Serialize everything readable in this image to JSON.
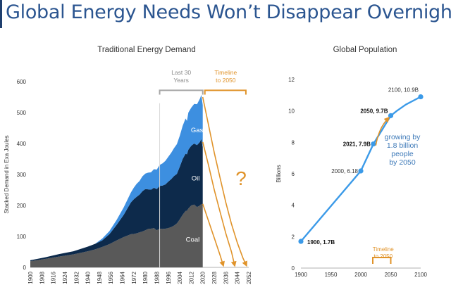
{
  "page": {
    "title": "Global Energy Needs Won’t Disappear Overnight"
  },
  "colors": {
    "title": "#2b5590",
    "coal": "#595959",
    "oil": "#0d2a4b",
    "gas": "#3d8fe0",
    "forecast": "#e0932a",
    "population": "#3b9ae8",
    "text": "#333333",
    "muted": "#8a8a8a",
    "growth_text": "#3d79b8"
  },
  "chart_data": [
    {
      "type": "area",
      "stacked": true,
      "title": "Traditional Energy Demand",
      "xlabel": "",
      "ylabel": "Stacked Demand in Exa Joules",
      "xlim": [
        1900,
        2052
      ],
      "ylim": [
        0,
        600
      ],
      "x_ticks": [
        1900,
        1908,
        1916,
        1924,
        1932,
        1940,
        1948,
        1956,
        1964,
        1972,
        1980,
        1988,
        1996,
        2004,
        2012,
        2020,
        2028,
        2036,
        2044,
        2052
      ],
      "y_ticks": [
        0,
        100,
        200,
        300,
        400,
        500,
        600
      ],
      "x": [
        1900,
        1910,
        1920,
        1930,
        1940,
        1945,
        1950,
        1955,
        1960,
        1965,
        1970,
        1972,
        1974,
        1976,
        1978,
        1980,
        1982,
        1984,
        1986,
        1988,
        1990,
        1992,
        1994,
        1996,
        1998,
        2000,
        2002,
        2004,
        2006,
        2008,
        2009,
        2010,
        2012,
        2014,
        2016,
        2018,
        2019,
        2020
      ],
      "series": [
        {
          "name": "Coal",
          "values": [
            20,
            27,
            35,
            42,
            52,
            58,
            66,
            75,
            87,
            98,
            107,
            108,
            110,
            113,
            116,
            120,
            124,
            125,
            127,
            120,
            125,
            124,
            125,
            127,
            130,
            135,
            142,
            155,
            170,
            182,
            183,
            190,
            200,
            203,
            195,
            200,
            205,
            198
          ]
        },
        {
          "name": "Oil",
          "values": [
            3,
            5,
            8,
            10,
            15,
            18,
            21,
            32,
            50,
            72,
            103,
            112,
            118,
            122,
            130,
            133,
            128,
            126,
            130,
            133,
            138,
            140,
            143,
            150,
            155,
            160,
            160,
            170,
            180,
            185,
            182,
            190,
            193,
            197,
            200,
            205,
            210,
            190
          ]
        },
        {
          "name": "Gas",
          "values": [
            0,
            0,
            0,
            0,
            0,
            0,
            6,
            10,
            16,
            24,
            32,
            37,
            42,
            44,
            48,
            50,
            54,
            56,
            60,
            63,
            68,
            72,
            76,
            80,
            85,
            90,
            96,
            100,
            107,
            114,
            108,
            120,
            123,
            128,
            132,
            140,
            142,
            136
          ]
        }
      ],
      "area_labels": [
        "Gas",
        "Oil",
        "Coal"
      ],
      "annotations": {
        "last30": "Last 30\nYears",
        "timeline": "Timeline\nto 2050",
        "question": "?"
      },
      "forecast": {
        "start": {
          "year": 2020,
          "value": 550
        },
        "lines": [
          {
            "series": "Gas",
            "x": [
              2020,
              2024,
              2028,
              2032,
              2036,
              2040,
              2044,
              2048,
              2050
            ],
            "values": [
              550,
              460,
              370,
              290,
              210,
              140,
              80,
              30,
              10
            ]
          },
          {
            "series": "Oil",
            "x": [
              2020,
              2024,
              2028,
              2032,
              2036,
              2040,
              2042
            ],
            "values": [
              405,
              330,
              250,
              180,
              110,
              50,
              10
            ]
          },
          {
            "series": "Coal",
            "x": [
              2020,
              2024,
              2028,
              2032,
              2034
            ],
            "values": [
              205,
              150,
              95,
              40,
              10
            ]
          }
        ]
      }
    },
    {
      "type": "line",
      "title": "Global Population",
      "xlabel": "",
      "ylabel": "Billions",
      "xlim": [
        1900,
        2100
      ],
      "ylim": [
        0,
        12
      ],
      "x_ticks": [
        1900,
        1950,
        2000,
        2050,
        2100
      ],
      "y_ticks": [
        0,
        2,
        4,
        6,
        8,
        10,
        12
      ],
      "series": [
        {
          "name": "",
          "x": [
            1900,
            2000,
            2021,
            2050,
            2060,
            2075,
            2090,
            2100
          ],
          "values": [
            1.7,
            6.18,
            7.9,
            9.7,
            10.0,
            10.4,
            10.7,
            10.9
          ]
        }
      ],
      "point_labels": [
        {
          "x": 1900,
          "y": 1.7,
          "label": "1900, 1.7B",
          "bold": true
        },
        {
          "x": 2000,
          "y": 6.18,
          "label": "2000, 6.18",
          "bold": false
        },
        {
          "x": 2021,
          "y": 7.9,
          "label": "2021, 7.9B",
          "bold": true
        },
        {
          "x": 2050,
          "y": 9.7,
          "label": "2050, 9.7B",
          "bold": true
        },
        {
          "x": 2100,
          "y": 10.9,
          "label": "2100, 10.9B",
          "bold": false
        }
      ],
      "annotations": {
        "growth": "growing by\n1.8 billion\npeople\nby 2050",
        "timeline": "Timeline\nto 2050"
      }
    }
  ]
}
